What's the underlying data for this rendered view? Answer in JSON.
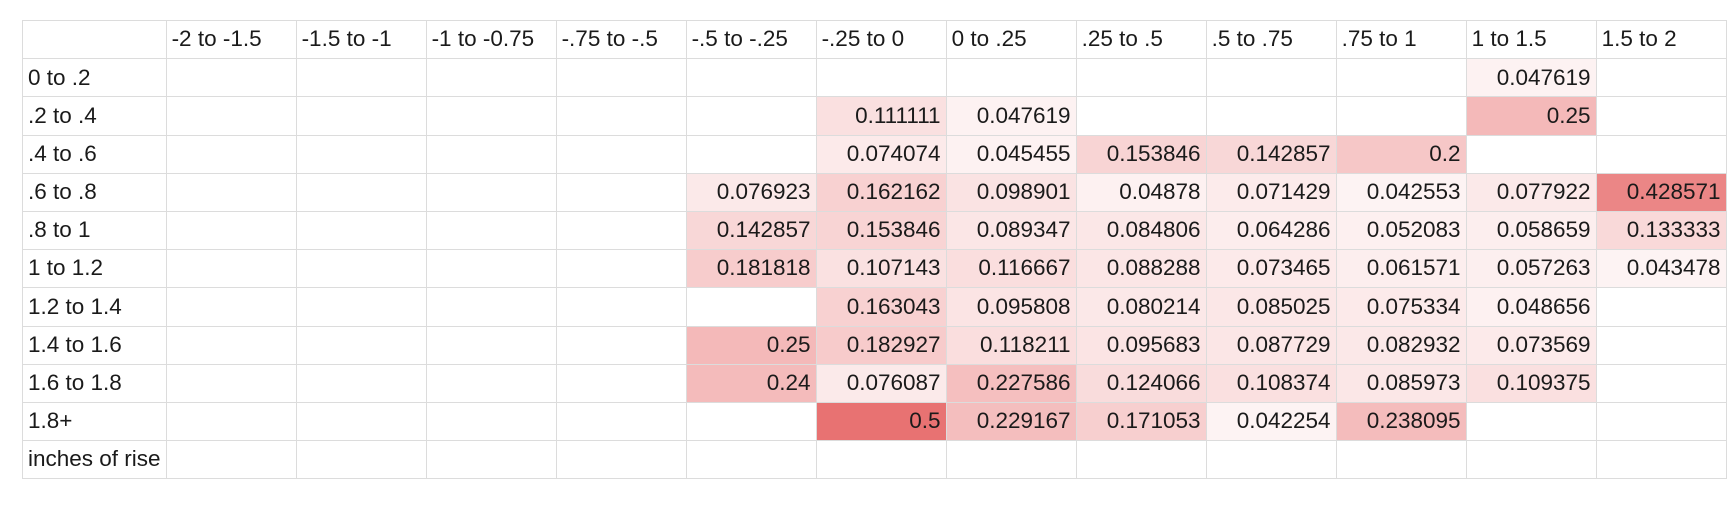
{
  "col_headers": [
    "",
    "-2 to -1.5",
    "-1.5 to -1",
    "-1 to -0.75",
    "-.75 to -.5",
    "-.5 to -.25",
    "-.25 to 0",
    "0 to .25",
    ".25 to .5",
    ".5 to .75",
    ".75 to 1",
    "1 to 1.5",
    "1.5 to 2"
  ],
  "rows": [
    {
      "label": "0 to .2",
      "cells": [
        "",
        "",
        "",
        "",
        "",
        "",
        "",
        "",
        "",
        "",
        "0.047619",
        ""
      ]
    },
    {
      "label": ".2 to .4",
      "cells": [
        "",
        "",
        "",
        "",
        "",
        "0.111111",
        "0.047619",
        "",
        "",
        "",
        "0.25",
        ""
      ]
    },
    {
      "label": ".4 to .6",
      "cells": [
        "",
        "",
        "",
        "",
        "",
        "0.074074",
        "0.045455",
        "0.153846",
        "0.142857",
        "0.2",
        "",
        ""
      ]
    },
    {
      "label": ".6 to .8",
      "cells": [
        "",
        "",
        "",
        "",
        "0.076923",
        "0.162162",
        "0.098901",
        "0.04878",
        "0.071429",
        "0.042553",
        "0.077922",
        "0.428571"
      ]
    },
    {
      "label": ".8 to 1",
      "cells": [
        "",
        "",
        "",
        "",
        "0.142857",
        "0.153846",
        "0.089347",
        "0.084806",
        "0.064286",
        "0.052083",
        "0.058659",
        "0.133333"
      ]
    },
    {
      "label": "1 to 1.2",
      "cells": [
        "",
        "",
        "",
        "",
        "0.181818",
        "0.107143",
        "0.116667",
        "0.088288",
        "0.073465",
        "0.061571",
        "0.057263",
        "0.043478"
      ]
    },
    {
      "label": "1.2 to 1.4",
      "cells": [
        "",
        "",
        "",
        "",
        "",
        "0.163043",
        "0.095808",
        "0.080214",
        "0.085025",
        "0.075334",
        "0.048656",
        ""
      ]
    },
    {
      "label": "1.4 to 1.6",
      "cells": [
        "",
        "",
        "",
        "",
        "0.25",
        "0.182927",
        "0.118211",
        "0.095683",
        "0.087729",
        "0.082932",
        "0.073569",
        ""
      ]
    },
    {
      "label": "1.6 to 1.8",
      "cells": [
        "",
        "",
        "",
        "",
        "0.24",
        "0.076087",
        "0.227586",
        "0.124066",
        "0.108374",
        "0.085973",
        "0.109375",
        ""
      ]
    },
    {
      "label": "1.8+",
      "cells": [
        "",
        "",
        "",
        "",
        "",
        "0.5",
        "0.229167",
        "0.171053",
        "0.042254",
        "0.238095",
        "",
        ""
      ]
    },
    {
      "label": "inches of rise",
      "cells": [
        "",
        "",
        "",
        "",
        "",
        "",
        "",
        "",
        "",
        "",
        "",
        ""
      ]
    }
  ],
  "color_scale": {
    "min_value": 0.0,
    "max_value": 0.5,
    "low_color": "#ffffff",
    "high_color": "#e87272"
  }
}
